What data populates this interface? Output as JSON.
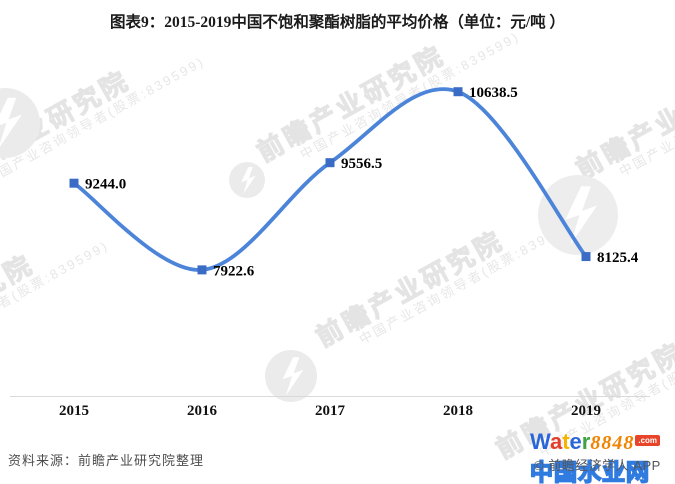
{
  "title": "图表9：2015-2019中国不饱和聚酯树脂的平均价格（单位：元/吨 ）",
  "source": "资料来源：前瞻产业研究院整理",
  "watermark": {
    "brand": "前瞻产业研究院",
    "subtitle": "中国产业咨询领导者(股票:839599)",
    "copyright": "© 前瞻经济学人 APP"
  },
  "logo": {
    "letters": [
      {
        "ch": "W",
        "color": "#2b66d9"
      },
      {
        "ch": "a",
        "color": "#e23e2b"
      },
      {
        "ch": "t",
        "color": "#f6b400"
      },
      {
        "ch": "e",
        "color": "#2b66d9"
      },
      {
        "ch": "r",
        "color": "#3fa43f"
      }
    ],
    "number": "8848",
    "tld": ".com",
    "site_name": "中国水业网"
  },
  "chart_data": {
    "type": "line",
    "smooth": true,
    "title": "图表9：2015-2019中国不饱和聚酯树脂的平均价格（单位：元/吨 ）",
    "unit": "元/吨",
    "categories": [
      "2015",
      "2016",
      "2017",
      "2018",
      "2019"
    ],
    "values": [
      9244.0,
      7922.6,
      9556.5,
      10638.5,
      8125.4
    ],
    "labels": [
      "9244.0",
      "7922.6",
      "9556.5",
      "10638.5",
      "8125.4"
    ],
    "ylim": [
      6000,
      11000
    ],
    "grid": false,
    "legend": "none",
    "line_color": "#4c84d9",
    "marker_color": "#3a6cc6",
    "axis_color": "#d9d9d9"
  }
}
